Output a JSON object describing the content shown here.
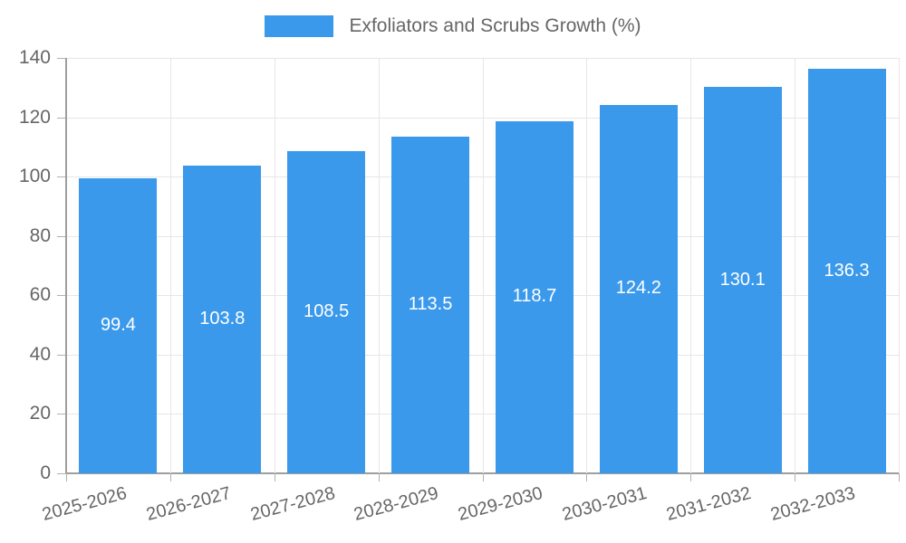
{
  "legend": {
    "label": "Exfoliators and Scrubs Growth (%)"
  },
  "chart_data": {
    "type": "bar",
    "title": "Exfoliators and Scrubs Growth (%)",
    "categories": [
      "2025-2026",
      "2026-2027",
      "2027-2028",
      "2028-2029",
      "2029-2030",
      "2030-2031",
      "2031-2032",
      "2032-2033"
    ],
    "values": [
      99.4,
      103.8,
      108.5,
      113.5,
      118.7,
      124.2,
      130.1,
      136.3
    ],
    "value_labels": [
      "99.4",
      "103.8",
      "108.5",
      "113.5",
      "118.7",
      "124.2",
      "130.1",
      "136.3"
    ],
    "xlabel": "",
    "ylabel": "",
    "ylim": [
      0,
      140
    ],
    "ytick_step": 20,
    "ytick_labels": [
      "0",
      "20",
      "40",
      "60",
      "80",
      "100",
      "120",
      "140"
    ],
    "grid": true,
    "legend_position": "top",
    "x_label_rotation_deg": -15,
    "colors": {
      "bar": "#3b99ec",
      "bar_value_text": "#ffffff",
      "axis_text": "#666666",
      "grid_line": "#e6e6e6",
      "axis_line": "#9e9e9e",
      "tick_mark": "#b0b0b0",
      "legend_text": "#666666"
    }
  }
}
